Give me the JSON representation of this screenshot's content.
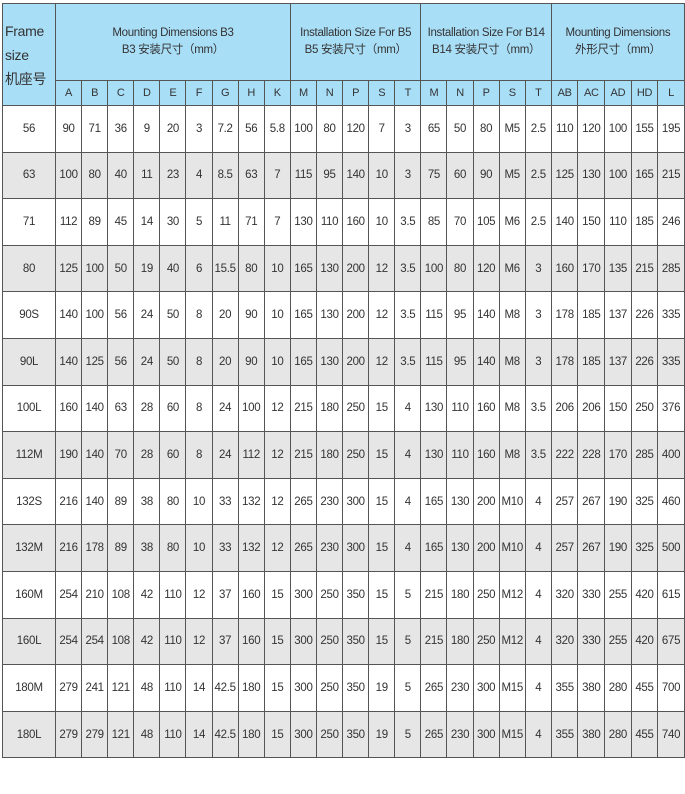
{
  "header": {
    "frame_label_en_1": "Frame",
    "frame_label_en_2": "size",
    "frame_label_cn": "机座号",
    "groups": [
      {
        "line1": "Mounting Dimensions B3",
        "line2": "B3 安装尺寸（mm）",
        "columns": [
          "A",
          "B",
          "C",
          "D",
          "E",
          "F",
          "G",
          "H",
          "K"
        ]
      },
      {
        "line1": "Installation Size For B5",
        "line2": "B5 安装尺寸（mm）",
        "columns": [
          "M",
          "N",
          "P",
          "S",
          "T"
        ]
      },
      {
        "line1": "Installation Size For B14",
        "line2": "B14 安装尺寸（mm）",
        "columns": [
          "M",
          "N",
          "P",
          "S",
          "T"
        ]
      },
      {
        "line1": "Mounting Dimensions",
        "line2": "外形尺寸（mm）",
        "columns": [
          "AB",
          "AC",
          "AD",
          "HD",
          "L"
        ]
      }
    ]
  },
  "colors": {
    "header_bg": "#a9def7",
    "alt_row_bg": "#e6e6e6",
    "border": "#555555"
  },
  "rows": [
    [
      "56",
      "90",
      "71",
      "36",
      "9",
      "20",
      "3",
      "7.2",
      "56",
      "5.8",
      "100",
      "80",
      "120",
      "7",
      "3",
      "65",
      "50",
      "80",
      "M5",
      "2.5",
      "110",
      "120",
      "100",
      "155",
      "195"
    ],
    [
      "63",
      "100",
      "80",
      "40",
      "11",
      "23",
      "4",
      "8.5",
      "63",
      "7",
      "115",
      "95",
      "140",
      "10",
      "3",
      "75",
      "60",
      "90",
      "M5",
      "2.5",
      "125",
      "130",
      "100",
      "165",
      "215"
    ],
    [
      "71",
      "112",
      "89",
      "45",
      "14",
      "30",
      "5",
      "11",
      "71",
      "7",
      "130",
      "110",
      "160",
      "10",
      "3.5",
      "85",
      "70",
      "105",
      "M6",
      "2.5",
      "140",
      "150",
      "110",
      "185",
      "246"
    ],
    [
      "80",
      "125",
      "100",
      "50",
      "19",
      "40",
      "6",
      "15.5",
      "80",
      "10",
      "165",
      "130",
      "200",
      "12",
      "3.5",
      "100",
      "80",
      "120",
      "M6",
      "3",
      "160",
      "170",
      "135",
      "215",
      "285"
    ],
    [
      "90S",
      "140",
      "100",
      "56",
      "24",
      "50",
      "8",
      "20",
      "90",
      "10",
      "165",
      "130",
      "200",
      "12",
      "3.5",
      "115",
      "95",
      "140",
      "M8",
      "3",
      "178",
      "185",
      "137",
      "226",
      "335"
    ],
    [
      "90L",
      "140",
      "125",
      "56",
      "24",
      "50",
      "8",
      "20",
      "90",
      "10",
      "165",
      "130",
      "200",
      "12",
      "3.5",
      "115",
      "95",
      "140",
      "M8",
      "3",
      "178",
      "185",
      "137",
      "226",
      "335"
    ],
    [
      "100L",
      "160",
      "140",
      "63",
      "28",
      "60",
      "8",
      "24",
      "100",
      "12",
      "215",
      "180",
      "250",
      "15",
      "4",
      "130",
      "110",
      "160",
      "M8",
      "3.5",
      "206",
      "206",
      "150",
      "250",
      "376"
    ],
    [
      "112M",
      "190",
      "140",
      "70",
      "28",
      "60",
      "8",
      "24",
      "112",
      "12",
      "215",
      "180",
      "250",
      "15",
      "4",
      "130",
      "110",
      "160",
      "M8",
      "3.5",
      "222",
      "228",
      "170",
      "285",
      "400"
    ],
    [
      "132S",
      "216",
      "140",
      "89",
      "38",
      "80",
      "10",
      "33",
      "132",
      "12",
      "265",
      "230",
      "300",
      "15",
      "4",
      "165",
      "130",
      "200",
      "M10",
      "4",
      "257",
      "267",
      "190",
      "325",
      "460"
    ],
    [
      "132M",
      "216",
      "178",
      "89",
      "38",
      "80",
      "10",
      "33",
      "132",
      "12",
      "265",
      "230",
      "300",
      "15",
      "4",
      "165",
      "130",
      "200",
      "M10",
      "4",
      "257",
      "267",
      "190",
      "325",
      "500"
    ],
    [
      "160M",
      "254",
      "210",
      "108",
      "42",
      "110",
      "12",
      "37",
      "160",
      "15",
      "300",
      "250",
      "350",
      "15",
      "5",
      "215",
      "180",
      "250",
      "M12",
      "4",
      "320",
      "330",
      "255",
      "420",
      "615"
    ],
    [
      "160L",
      "254",
      "254",
      "108",
      "42",
      "110",
      "12",
      "37",
      "160",
      "15",
      "300",
      "250",
      "350",
      "15",
      "5",
      "215",
      "180",
      "250",
      "M12",
      "4",
      "320",
      "330",
      "255",
      "420",
      "675"
    ],
    [
      "180M",
      "279",
      "241",
      "121",
      "48",
      "110",
      "14",
      "42.5",
      "180",
      "15",
      "300",
      "250",
      "350",
      "19",
      "5",
      "265",
      "230",
      "300",
      "M15",
      "4",
      "355",
      "380",
      "280",
      "455",
      "700"
    ],
    [
      "180L",
      "279",
      "279",
      "121",
      "48",
      "110",
      "14",
      "42.5",
      "180",
      "15",
      "300",
      "250",
      "350",
      "19",
      "5",
      "265",
      "230",
      "300",
      "M15",
      "4",
      "355",
      "380",
      "280",
      "455",
      "740"
    ]
  ]
}
